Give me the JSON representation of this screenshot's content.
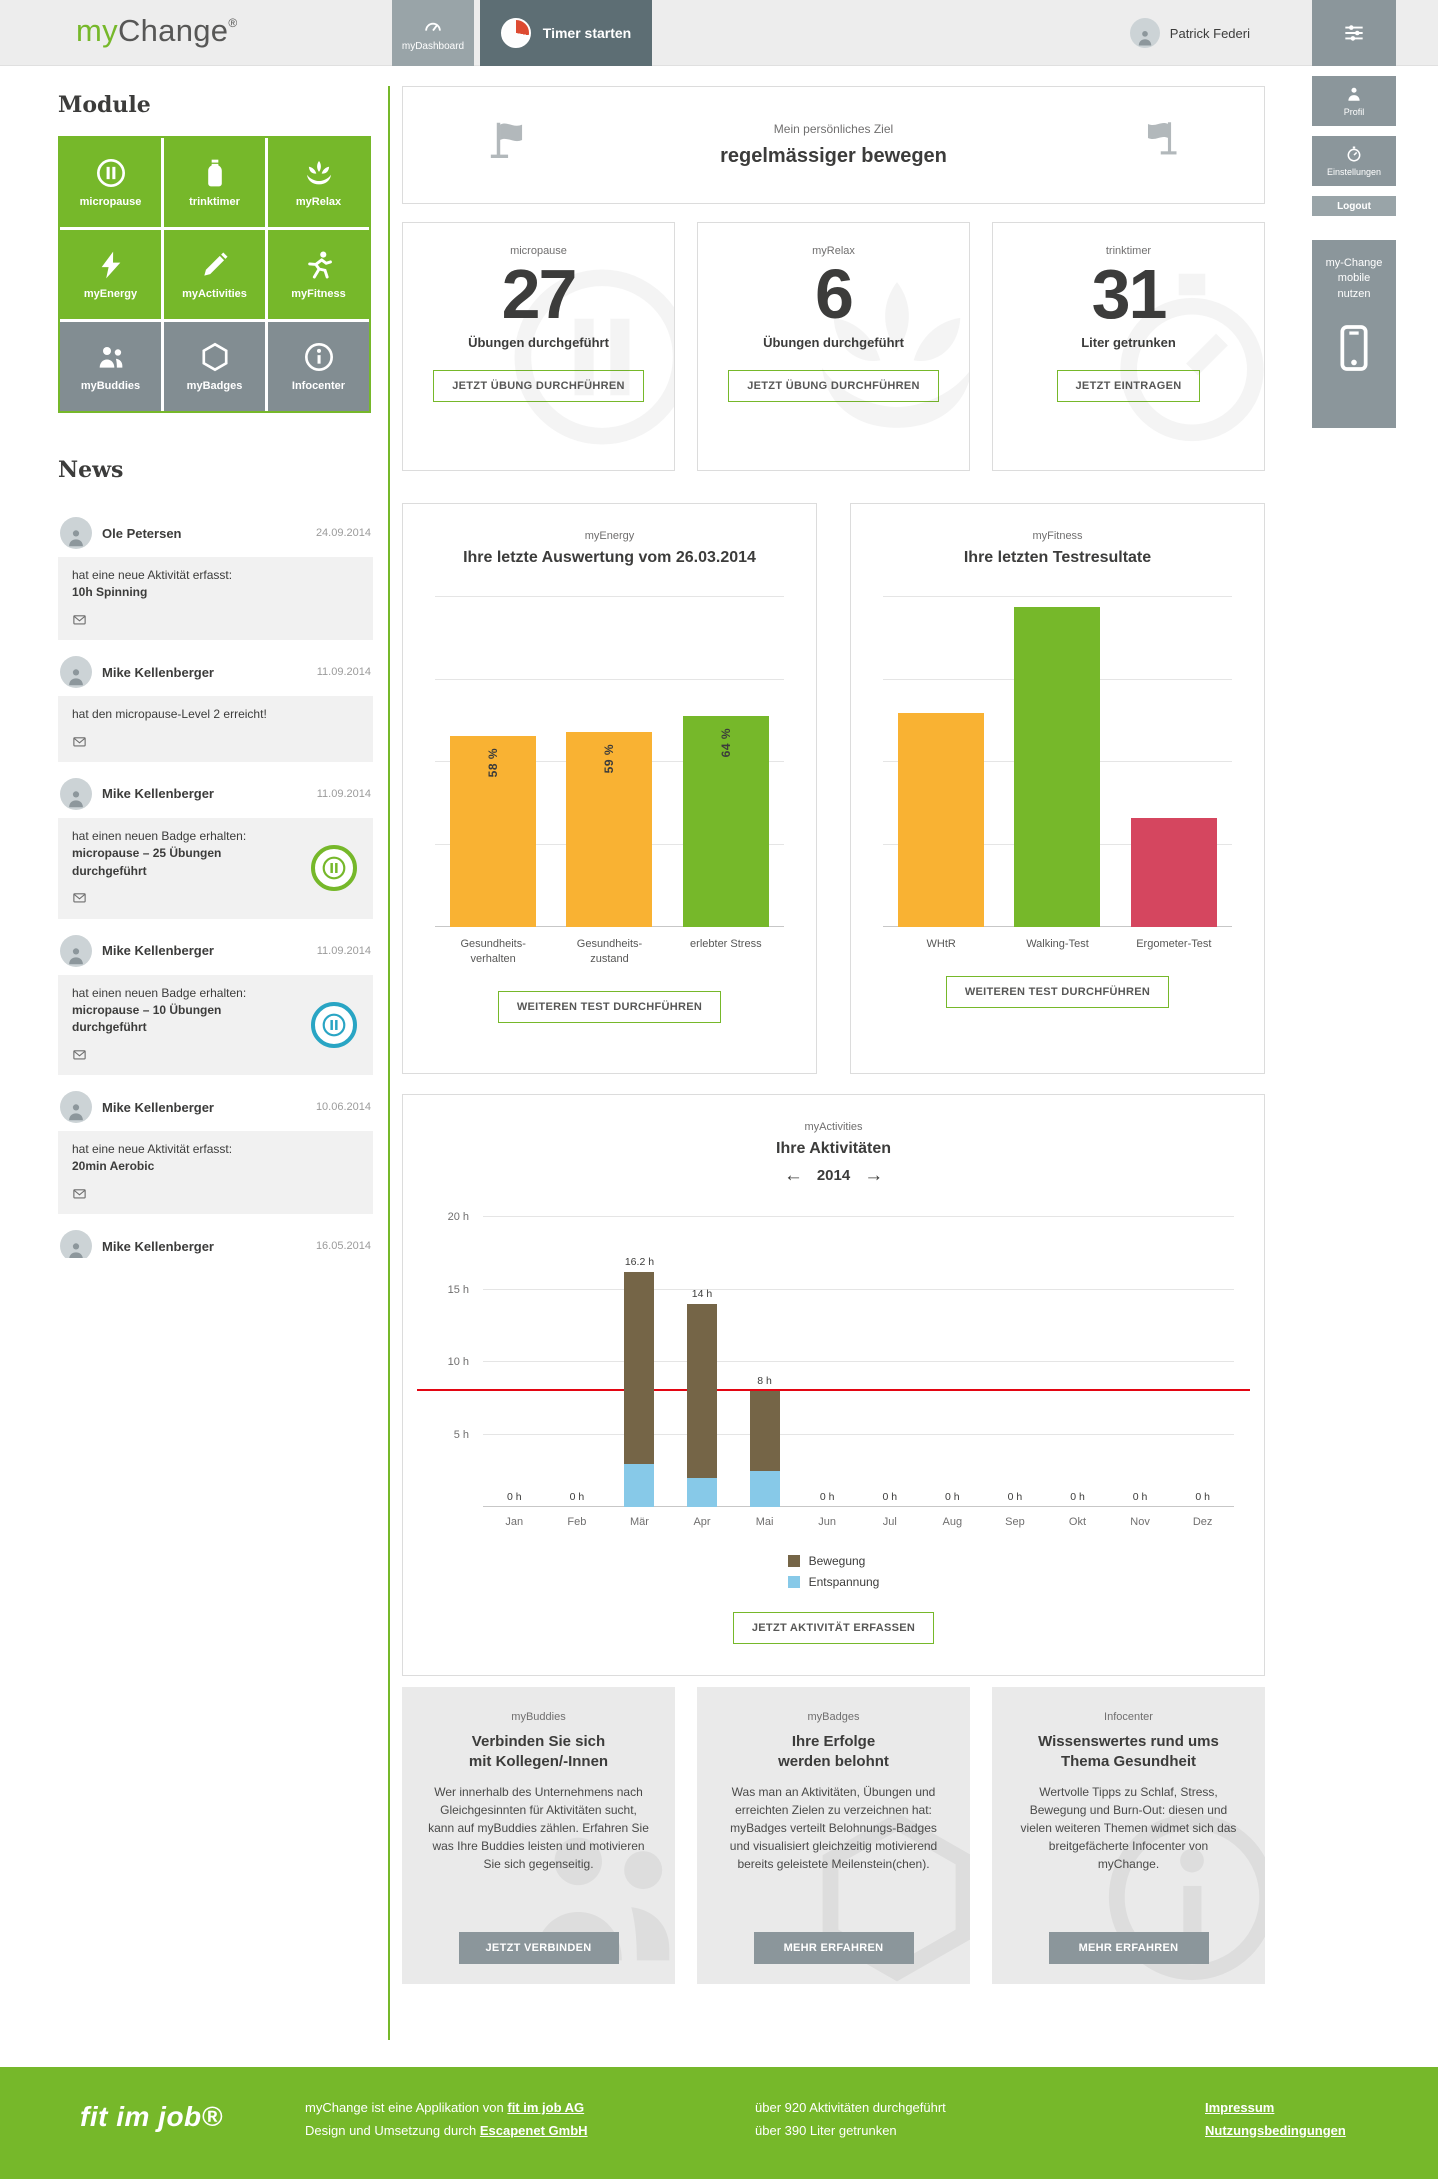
{
  "colors": {
    "green": "#76b82a",
    "orange": "#f9b233",
    "red": "#d5465f",
    "brown": "#756547",
    "blue": "#87c9e8",
    "teal": "#29a5c4",
    "target_line_red": "#e30613",
    "gray_button": "#8b969b"
  },
  "header": {
    "logo_part1": "my",
    "logo_part2": "Change",
    "logo_reg": "®",
    "dashboard_tab": "myDashboard",
    "timer_button": "Timer starten",
    "user_name": "Patrick Federi"
  },
  "right_rail": {
    "profil": "Profil",
    "einstellungen": "Einstellungen",
    "logout": "Logout",
    "mobile_promo": "my-Change\nmobile\nnutzen"
  },
  "modules": {
    "title": "Module",
    "items": [
      {
        "label": "micropause",
        "icon": "pause-icon",
        "color": "green"
      },
      {
        "label": "trinktimer",
        "icon": "bottle-icon",
        "color": "green"
      },
      {
        "label": "myRelax",
        "icon": "lotus-icon",
        "color": "green"
      },
      {
        "label": "myEnergy",
        "icon": "bolt-icon",
        "color": "green"
      },
      {
        "label": "myActivities",
        "icon": "pencil-icon",
        "color": "green"
      },
      {
        "label": "myFitness",
        "icon": "runner-icon",
        "color": "green"
      },
      {
        "label": "myBuddies",
        "icon": "buddies-icon",
        "color": "gray"
      },
      {
        "label": "myBadges",
        "icon": "hexagon-icon",
        "color": "gray"
      },
      {
        "label": "Infocenter",
        "icon": "info-icon",
        "color": "gray"
      }
    ]
  },
  "news": {
    "title": "News",
    "items": [
      {
        "name": "Ole Petersen",
        "date": "24.09.2014",
        "text": "hat eine neue Aktivität erfasst:",
        "highlight": "10h Spinning",
        "badge": ""
      },
      {
        "name": "Mike Kellenberger",
        "date": "11.09.2014",
        "text": "hat den micropause-Level 2 erreicht!",
        "highlight": "",
        "badge": ""
      },
      {
        "name": "Mike Kellenberger",
        "date": "11.09.2014",
        "text": "hat einen neuen Badge erhalten:",
        "highlight": "micropause – 25 Übungen durchgeführt",
        "badge": "green"
      },
      {
        "name": "Mike Kellenberger",
        "date": "11.09.2014",
        "text": "hat einen neuen Badge erhalten:",
        "highlight": "micropause – 10 Übungen durchgeführt",
        "badge": "teal"
      },
      {
        "name": "Mike Kellenberger",
        "date": "10.06.2014",
        "text": "hat eine neue Aktivität erfasst:",
        "highlight": "20min Aerobic",
        "badge": ""
      },
      {
        "name": "Mike Kellenberger",
        "date": "16.05.2014",
        "text": "",
        "highlight": "",
        "badge": ""
      }
    ]
  },
  "goal": {
    "label": "Mein persönliches Ziel",
    "value": "regelmässiger bewegen"
  },
  "stats": [
    {
      "module": "micropause",
      "value": "27",
      "caption": "Übungen durchgeführt",
      "button": "JETZT ÜBUNG DURCHFÜHREN",
      "icon": "pause-icon"
    },
    {
      "module": "myRelax",
      "value": "6",
      "caption": "Übungen durchgeführt",
      "button": "JETZT ÜBUNG DURCHFÜHREN",
      "icon": "lotus-icon"
    },
    {
      "module": "trinktimer",
      "value": "31",
      "caption": "Liter getrunken",
      "button": "JETZT EINTRAGEN",
      "icon": "stopwatch-icon"
    }
  ],
  "chart_data": [
    {
      "type": "bar",
      "module": "myEnergy",
      "title": "Ihre letzte Auswertung vom 26.03.2014",
      "categories": [
        "Gesundheits-\nverhalten",
        "Gesundheits-\nzustand",
        "erlebter Stress"
      ],
      "values": [
        58,
        59,
        64
      ],
      "value_labels": [
        "58 %",
        "59 %",
        "64 %"
      ],
      "colors": [
        "#f9b233",
        "#f9b233",
        "#76b82a"
      ],
      "ylim": [
        0,
        100
      ],
      "grid": true,
      "legend_position": "none",
      "button": "WEITEREN TEST DURCHFÜHREN"
    },
    {
      "type": "bar",
      "module": "myFitness",
      "title": "Ihre letzten Testresultate",
      "categories": [
        "WHtR",
        "Walking-Test",
        "Ergometer-Test"
      ],
      "values": [
        65,
        97,
        33
      ],
      "colors": [
        "#f9b233",
        "#76b82a",
        "#d5465f"
      ],
      "ylim": [
        0,
        100
      ],
      "grid": true,
      "legend_position": "none",
      "button": "WEITEREN TEST DURCHFÜHREN"
    },
    {
      "type": "bar",
      "stacked": true,
      "module": "myActivities",
      "title": "Ihre Aktivitäten",
      "year": "2014",
      "prev_arrow": "←",
      "next_arrow": "→",
      "categories": [
        "Jan",
        "Feb",
        "Mär",
        "Apr",
        "Mai",
        "Jun",
        "Jul",
        "Aug",
        "Sep",
        "Okt",
        "Nov",
        "Dez"
      ],
      "series": [
        {
          "name": "Bewegung",
          "color": "#756547",
          "values": [
            0,
            0,
            13.2,
            12,
            5.5,
            0,
            0,
            0,
            0,
            0,
            0,
            0
          ]
        },
        {
          "name": "Entspannung",
          "color": "#87c9e8",
          "values": [
            0,
            0,
            3,
            2,
            2.5,
            0,
            0,
            0,
            0,
            0,
            0,
            0
          ]
        }
      ],
      "totals_labels": [
        "0 h",
        "0 h",
        "16.2 h",
        "14 h",
        "8 h",
        "0 h",
        "0 h",
        "0 h",
        "0 h",
        "0 h",
        "0 h",
        "0 h"
      ],
      "yticks": [
        {
          "value": 5,
          "label": "5 h"
        },
        {
          "value": 10,
          "label": "10 h"
        },
        {
          "value": 15,
          "label": "15 h"
        },
        {
          "value": 20,
          "label": "20 h"
        }
      ],
      "ylim": [
        0,
        20
      ],
      "target_line": 8,
      "grid": true,
      "legend_position": "bottom",
      "button": "JETZT AKTIVITÄT ERFASSEN"
    }
  ],
  "info_cards": [
    {
      "module": "myBuddies",
      "title": "Verbinden Sie sich\nmit Kollegen/-Innen",
      "body": "Wer innerhalb des Unternehmens nach Gleichgesinnten für Aktivitäten sucht, kann auf myBuddies zählen. Erfahren Sie was Ihre Buddies leisten und motivieren Sie sich gegenseitig.",
      "button": "JETZT VERBINDEN",
      "icon": "buddies-icon"
    },
    {
      "module": "myBadges",
      "title": "Ihre Erfolge\nwerden belohnt",
      "body": "Was man an Aktivitäten, Übungen und erreichten Zielen zu verzeichnen hat: myBadges verteilt Belohnungs-Badges und visualisiert gleichzeitig motivierend bereits geleistete Meilenstein(chen).",
      "button": "MEHR ERFAHREN",
      "icon": "hexagon-icon"
    },
    {
      "module": "Infocenter",
      "title": "Wissenswertes rund ums\nThema Gesundheit",
      "body": "Wertvolle Tipps zu Schlaf, Stress, Bewegung und Burn-Out: diesen und vielen weiteren Themen widmet sich das breitgefächerte Infocenter von myChange.",
      "button": "MEHR ERFAHREN",
      "icon": "info-icon"
    }
  ],
  "footer": {
    "logo": "fit im job®",
    "line1_prefix": "myChange ist eine Applikation von ",
    "line1_link": "fit im job AG",
    "line2_prefix": "Design und Umsetzung durch ",
    "line2_link": "Escapenet GmbH",
    "stat1": "über 920 Aktivitäten durchgeführt",
    "stat2": "über 390 Liter getrunken",
    "link1": "Impressum",
    "link2": "Nutzungsbedingungen"
  }
}
